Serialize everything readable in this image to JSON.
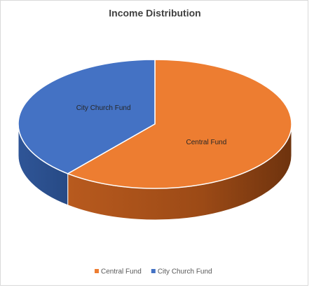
{
  "chart_data": {
    "type": "pie3d",
    "title": "Income Distribution",
    "categories": [
      "Central Fund",
      "City Church Fund"
    ],
    "values": [
      61,
      39
    ],
    "colors": [
      "#ED7D31",
      "#4472C4"
    ],
    "legend": "bottom"
  }
}
